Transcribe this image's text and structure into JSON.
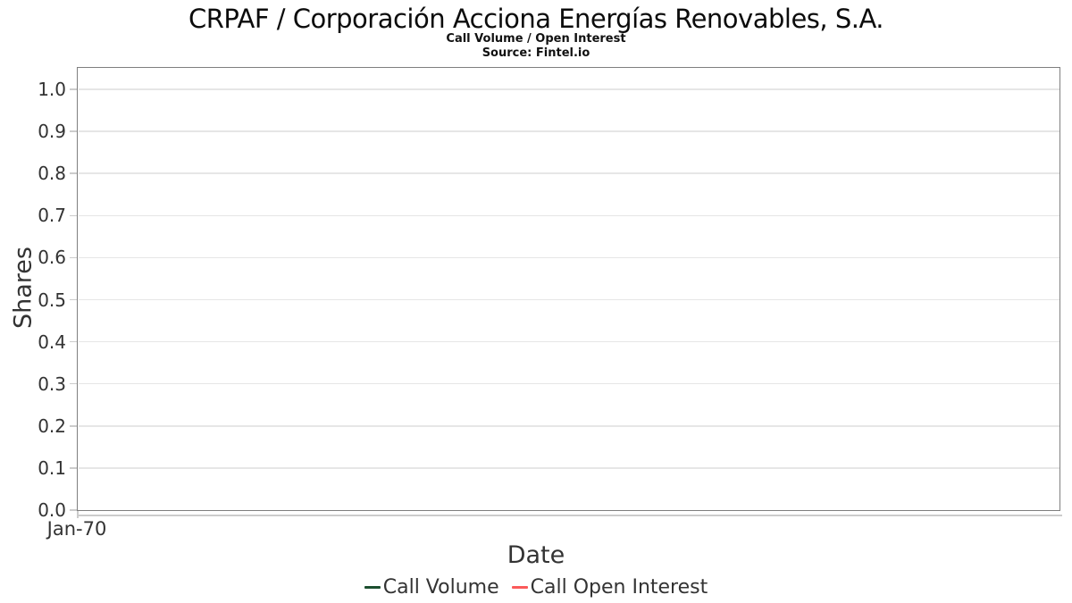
{
  "page": {
    "title": "CRPAF / Corporación Acciona Energías Renovables, S.A.",
    "subtitle": "Call Volume / Open Interest",
    "source": "Source: Fintel.io"
  },
  "chart_data": {
    "type": "line",
    "title": "CRPAF / Corporación Acciona Energías Renovables, S.A.",
    "subtitle": "Call Volume / Open Interest",
    "source": "Source: Fintel.io",
    "xlabel": "Date",
    "ylabel": "Shares",
    "x_tick_labels": [
      "Jan-70"
    ],
    "y_tick_labels": [
      "1.0",
      "0.9",
      "0.8",
      "0.7",
      "0.6",
      "0.5",
      "0.4",
      "0.3",
      "0.2",
      "0.1",
      "0.0"
    ],
    "ylim": [
      0.0,
      1.05
    ],
    "grid": true,
    "legend_position": "bottom-center",
    "series": [
      {
        "name": "Call Volume",
        "color": "#1c4f2f",
        "values": []
      },
      {
        "name": "Call Open Interest",
        "color": "#fb5a5a",
        "values": []
      }
    ],
    "plot_empty": true
  },
  "colors": {
    "plot_border": "#7f7f7f",
    "gridline": "#e6e6e6",
    "axis_line": "#cccccc",
    "text": "#333333",
    "call_volume": "#1c4f2f",
    "call_open_interest": "#fb5a5a"
  }
}
